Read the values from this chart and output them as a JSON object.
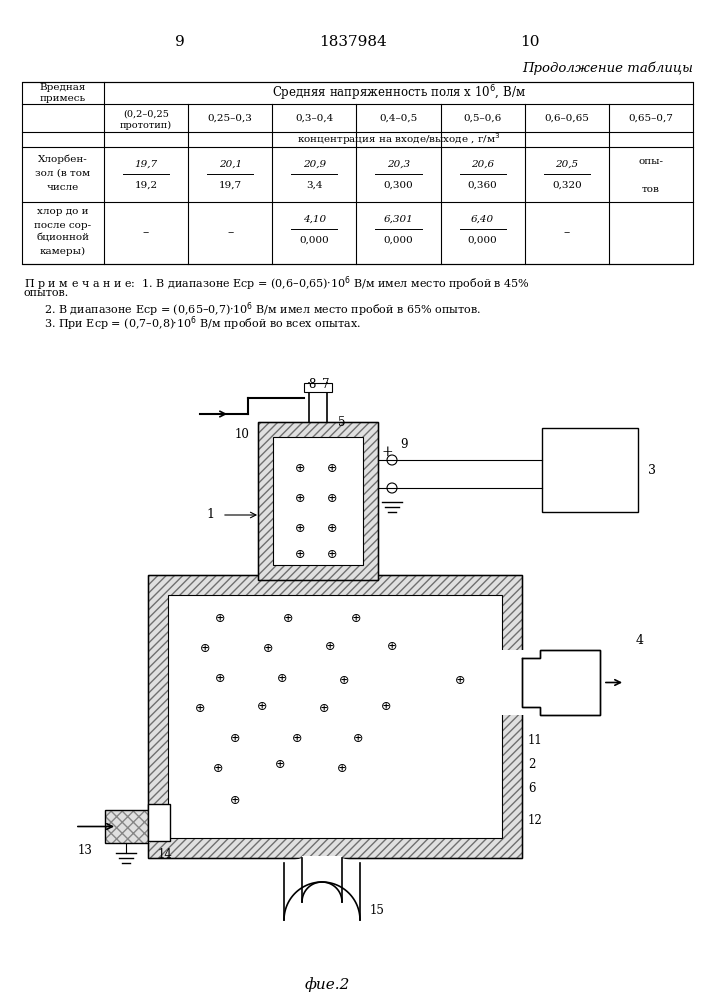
{
  "page_num_left": "9",
  "patent_num": "1837984",
  "page_num_right": "10",
  "header_right": "Продолжение таблицы",
  "table": {
    "col0_header": [
      "Вредная",
      "примесь"
    ],
    "main_header": "Средняя напряженность поля х 10^6, В/м",
    "col_ranges": [
      "(0,2–0,25",
      "0,25–0,3",
      "0,3–0,4",
      "0,4–0,5",
      "0,5–0,6",
      "0,6–0,65",
      "0,65–0,7"
    ],
    "col_sub": "прототип)",
    "sub_header": "концентрация на входе/выходе , г/м^3",
    "row1_name": [
      "Хлорбен-",
      "зол (в том",
      "числе"
    ],
    "row1_data": [
      [
        "19,7",
        "19,2"
      ],
      [
        "20,1",
        "19,7"
      ],
      [
        "20,9",
        "3,4"
      ],
      [
        "20,3",
        "0,300"
      ],
      [
        "20,6",
        "0,360"
      ],
      [
        "20,5",
        "0,320"
      ],
      [
        "опы-",
        "тов"
      ]
    ],
    "row2_name": [
      "хлор до и",
      "после сор-",
      "бционной",
      "камеры)"
    ],
    "row2_data": [
      [
        "–",
        ""
      ],
      [
        "–",
        ""
      ],
      [
        "4,10",
        "0,000"
      ],
      [
        "6,301",
        "0,000"
      ],
      [
        "6,40",
        "0,000"
      ],
      [
        "–",
        ""
      ],
      [
        "",
        ""
      ]
    ]
  },
  "notes": [
    "П р и м е ч а н и е:  1. В диапазоне Еср = (0,6–0,65)·10^6 В/м имел место пробой в 45%",
    "опытов.",
    "2. В диапазоне Еср = (0,65–0,7)·10^6 В/м имел место пробой в 65% опытов.",
    "3. При Еср = (0,7–0,8)·10^6 В/м пробой во всех опытах."
  ],
  "fig_label": "фие.2",
  "bg_color": "#ffffff"
}
